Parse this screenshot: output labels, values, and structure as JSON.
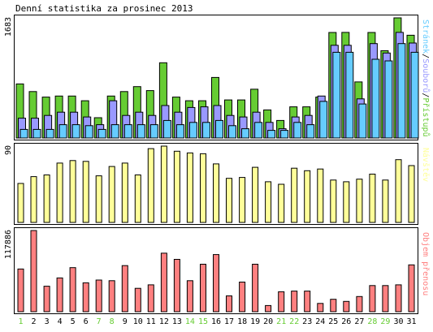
{
  "title": "Denní statistika za prosinec 2013",
  "colors": {
    "hits": "#66cc33",
    "files": "#9999ff",
    "pages": "#66ccff",
    "visits": "#ffff99",
    "volume": "#ff8080",
    "weekday_label": "#000000",
    "weekend_label": "#66cc33",
    "axis": "#000000"
  },
  "chart_data": [
    {
      "type": "bar",
      "name": "hits-files-pages",
      "categories": [
        "1",
        "2",
        "3",
        "4",
        "5",
        "6",
        "7",
        "8",
        "9",
        "10",
        "11",
        "12",
        "13",
        "14",
        "15",
        "16",
        "17",
        "18",
        "19",
        "20",
        "21",
        "22",
        "23",
        "24",
        "25",
        "26",
        "27",
        "28",
        "29",
        "30",
        "31"
      ],
      "weekend_days": [
        "1",
        "7",
        "8",
        "14",
        "15",
        "21",
        "22",
        "28",
        "29"
      ],
      "ytick_label": "1683",
      "ylim": [
        0,
        1683
      ],
      "side_label_parts": [
        "Stránek",
        "/",
        "Souborů",
        "/",
        "Přístupů"
      ],
      "series": [
        {
          "name": "Přístupů",
          "key": "hits",
          "values": [
            757,
            651,
            573,
            588,
            588,
            522,
            284,
            588,
            651,
            720,
            664,
            1054,
            573,
            522,
            522,
            848,
            533,
            533,
            683,
            393,
            246,
            437,
            437,
            573,
            1478,
            1480,
            786,
            1478,
            1222,
            1683,
            1440
          ]
        },
        {
          "name": "Souborů",
          "key": "files",
          "values": [
            278,
            278,
            316,
            362,
            362,
            295,
            186,
            522,
            316,
            362,
            316,
            455,
            362,
            428,
            437,
            455,
            316,
            295,
            362,
            218,
            130,
            295,
            316,
            588,
            1299,
            1299,
            548,
            1323,
            1191,
            1480,
            1330
          ]
        },
        {
          "name": "Stránek",
          "key": "pages",
          "values": [
            120,
            120,
            120,
            186,
            186,
            173,
            120,
            186,
            186,
            186,
            186,
            246,
            186,
            218,
            218,
            246,
            173,
            130,
            218,
            107,
            107,
            218,
            186,
            513,
            1201,
            1201,
            477,
            1103,
            1080,
            1323,
            1201
          ]
        }
      ]
    },
    {
      "type": "bar",
      "name": "visits",
      "categories": [
        "1",
        "2",
        "3",
        "4",
        "5",
        "6",
        "7",
        "8",
        "9",
        "10",
        "11",
        "12",
        "13",
        "14",
        "15",
        "16",
        "17",
        "18",
        "19",
        "20",
        "21",
        "22",
        "23",
        "24",
        "25",
        "26",
        "27",
        "28",
        "29",
        "30",
        "31"
      ],
      "ytick_label": "90",
      "ylim": [
        0,
        90
      ],
      "side_label": "Návštěv",
      "series": [
        {
          "name": "Návštěv",
          "key": "visits",
          "values": [
            46,
            54,
            56,
            70,
            73,
            72,
            55,
            66,
            70,
            56,
            87,
            90,
            84,
            82,
            81,
            69,
            52,
            53,
            65,
            48,
            45,
            64,
            61,
            63,
            50,
            48,
            51,
            57,
            50,
            74,
            67
          ]
        }
      ]
    },
    {
      "type": "bar",
      "name": "volume",
      "categories": [
        "1",
        "2",
        "3",
        "4",
        "5",
        "6",
        "7",
        "8",
        "9",
        "10",
        "11",
        "12",
        "13",
        "14",
        "15",
        "16",
        "17",
        "18",
        "19",
        "20",
        "21",
        "22",
        "23",
        "24",
        "25",
        "26",
        "27",
        "28",
        "29",
        "30",
        "31"
      ],
      "ytick_label": "117886",
      "ylim": [
        0,
        117886
      ],
      "side_label": "Objem přenosu",
      "series": [
        {
          "name": "Objem přenosu",
          "key": "volume",
          "values": [
            62000,
            117886,
            37000,
            49000,
            64000,
            42000,
            46000,
            45000,
            67000,
            34000,
            39000,
            85000,
            76000,
            45000,
            69000,
            83000,
            23000,
            43000,
            69000,
            9000,
            29000,
            30000,
            30000,
            12000,
            18000,
            15000,
            22000,
            38000,
            38000,
            39000,
            68000
          ]
        }
      ]
    }
  ]
}
